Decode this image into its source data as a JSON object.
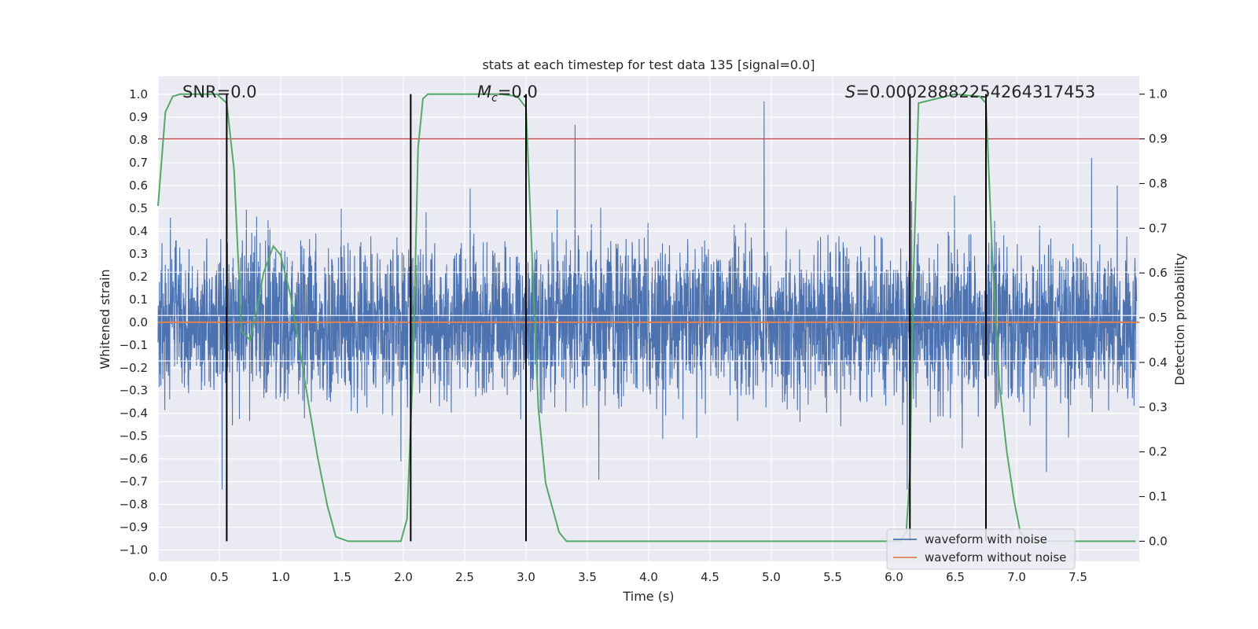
{
  "chart_data": {
    "type": "line",
    "title": "stats at each timestep for test data 135 [signal=0.0]",
    "xlabel": "Time (s)",
    "ylabel": "Whitened strain",
    "y2label": "Detection probability",
    "xlim": [
      0.0,
      8.0
    ],
    "ylim": [
      -1.05,
      1.08
    ],
    "y2lim": [
      -0.045,
      1.04
    ],
    "xticks": [
      "0.0",
      "0.5",
      "1.0",
      "1.5",
      "2.0",
      "2.5",
      "3.0",
      "3.5",
      "4.0",
      "4.5",
      "5.0",
      "5.5",
      "6.0",
      "6.5",
      "7.0",
      "7.5"
    ],
    "yticks": [
      "1.0",
      "0.9",
      "0.8",
      "0.7",
      "0.6",
      "0.5",
      "0.4",
      "0.3",
      "0.2",
      "0.1",
      "0.0",
      "−0.1",
      "−0.2",
      "−0.3",
      "−0.4",
      "−0.5",
      "−0.6",
      "−0.7",
      "−0.8",
      "−0.9",
      "−1.0"
    ],
    "y2ticks": [
      "1.0",
      "0.9",
      "0.8",
      "0.7",
      "0.6",
      "0.5",
      "0.4",
      "0.3",
      "0.2",
      "0.1",
      "0.0"
    ],
    "grid": true,
    "legend_placement": "lower-right",
    "annotations": {
      "snr": "SNR=0.0",
      "mc_symbol": "M",
      "mc_sub": "c",
      "mc_value": "=0.0",
      "s_symbol": "S",
      "s_value": "=0.00028882254264317453"
    },
    "threshold": {
      "value": 0.9,
      "color": "#c44e52"
    },
    "event_lines_x": [
      0.56,
      2.06,
      3.0,
      6.13,
      6.75
    ],
    "series": [
      {
        "name": "waveform with noise",
        "color": "#4c72b0",
        "amplitude_core": 0.3,
        "amplitude_peak": 0.65
      },
      {
        "name": "waveform without noise",
        "color": "#dd8452",
        "values": [
          0.0,
          0.0
        ]
      },
      {
        "name": "",
        "color": "#55a868",
        "x": [
          0.0,
          0.06,
          0.12,
          0.18,
          0.3,
          0.48,
          0.56,
          0.62,
          0.68,
          0.75,
          0.8,
          0.86,
          0.94,
          1.0,
          1.08,
          1.15,
          1.22,
          1.3,
          1.38,
          1.45,
          1.55,
          1.7,
          1.85,
          1.98,
          2.03,
          2.08,
          2.12,
          2.16,
          2.2,
          2.5,
          2.8,
          2.93,
          3.0,
          3.04,
          3.1,
          3.16,
          3.22,
          3.27,
          3.33,
          3.5,
          4.5,
          5.5,
          6.05,
          6.1,
          6.13,
          6.16,
          6.2,
          6.5,
          6.7,
          6.75,
          6.8,
          6.86,
          6.92,
          6.98,
          7.03,
          7.1,
          7.5,
          7.97
        ],
        "values": [
          0.75,
          0.96,
          0.995,
          1.0,
          1.0,
          1.0,
          0.98,
          0.83,
          0.47,
          0.45,
          0.51,
          0.6,
          0.66,
          0.64,
          0.55,
          0.44,
          0.32,
          0.19,
          0.08,
          0.01,
          0.0,
          0.0,
          0.0,
          0.0,
          0.05,
          0.4,
          0.88,
          0.99,
          1.0,
          1.0,
          1.0,
          0.995,
          0.97,
          0.7,
          0.3,
          0.13,
          0.07,
          0.02,
          0.0,
          0.0,
          0.0,
          0.0,
          0.0,
          0.02,
          0.15,
          0.6,
          0.98,
          1.0,
          0.995,
          0.98,
          0.65,
          0.35,
          0.2,
          0.09,
          0.02,
          0.0,
          0.0,
          0.0
        ]
      }
    ]
  }
}
